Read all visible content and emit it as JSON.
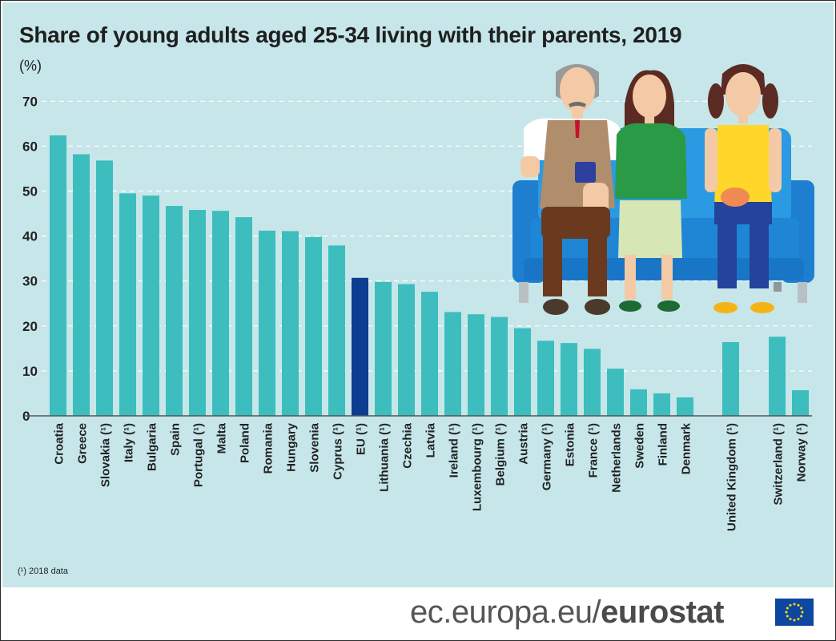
{
  "chart_data": {
    "type": "bar",
    "title": "Share of young adults aged 25-34 living with their parents, 2019",
    "unit": "(%)",
    "ylim": [
      0,
      70
    ],
    "yticks": [
      0,
      10,
      20,
      30,
      40,
      50,
      60,
      70
    ],
    "grid": true,
    "categories": [
      "Croatia",
      "Greece",
      "Slovakia (¹)",
      "Italy (¹)",
      "Bulgaria",
      "Spain",
      "Portugal (¹)",
      "Malta",
      "Poland",
      "Romania",
      "Hungary",
      "Slovenia",
      "Cyprus (¹)",
      "EU (¹)",
      "Lithuania (¹)",
      "Czechia",
      "Latvia",
      "Ireland (¹)",
      "Luxembourg (¹)",
      "Belgium (¹)",
      "Austria",
      "Germany (¹)",
      "Estonia",
      "France (¹)",
      "Netherlands",
      "Sweden",
      "Finland",
      "Denmark",
      "United Kingdom (¹)",
      "Switzerland (¹)",
      "Norway (¹)"
    ],
    "values": [
      62.4,
      58.2,
      56.8,
      49.5,
      49.0,
      46.7,
      45.8,
      45.6,
      44.2,
      41.2,
      41.1,
      39.8,
      37.9,
      30.7,
      29.8,
      29.3,
      27.6,
      23.1,
      22.6,
      22.0,
      19.5,
      16.7,
      16.2,
      14.9,
      10.5,
      5.9,
      5.0,
      4.1,
      16.4,
      17.6,
      5.7
    ],
    "highlight": "EU (¹)",
    "colors": {
      "bar": "#3dbdbd",
      "highlight": "#0b3d91",
      "grid": "#ffffff",
      "background": "#c6e6e9"
    }
  },
  "footnote": "(¹) 2018 data",
  "footer": {
    "url_prefix": "ec.europa.eu/",
    "brand": "eurostat"
  }
}
